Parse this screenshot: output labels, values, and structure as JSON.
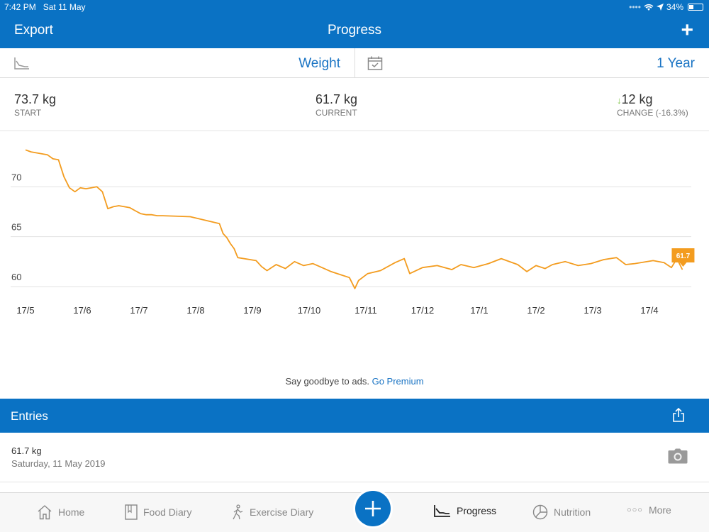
{
  "status_bar": {
    "time": "7:42 PM",
    "date": "Sat 11 May",
    "battery": "34%"
  },
  "nav": {
    "left": "Export",
    "title": "Progress",
    "right": "+"
  },
  "filters": {
    "metric": "Weight",
    "period": "1 Year"
  },
  "stats": {
    "start": {
      "value": "73.7 kg",
      "label": "START"
    },
    "current": {
      "value": "61.7 kg",
      "label": "CURRENT"
    },
    "change": {
      "value": "12 kg",
      "label": "CHANGE (-16.3%)",
      "direction": "down"
    }
  },
  "chart_data": {
    "type": "line",
    "x_tick_labels": [
      "17/5",
      "17/6",
      "17/7",
      "17/8",
      "17/9",
      "17/10",
      "17/11",
      "17/12",
      "17/1",
      "17/2",
      "17/3",
      "17/4"
    ],
    "y_ticks": [
      60,
      65,
      70
    ],
    "ylim": [
      59.5,
      74.5
    ],
    "grid": true,
    "line_color": "#f39c1f",
    "last_value_label": "61.7",
    "series": [
      {
        "x": [
          "2018-05-17",
          "2018-05-20",
          "2018-05-23",
          "2018-05-26",
          "2018-05-29",
          "2018-06-01",
          "2018-06-04",
          "2018-06-07",
          "2018-06-10",
          "2018-06-13",
          "2018-06-16",
          "2018-06-19",
          "2018-06-22",
          "2018-06-25",
          "2018-06-28",
          "2018-07-01",
          "2018-07-04",
          "2018-07-07",
          "2018-07-10",
          "2018-07-13",
          "2018-07-16",
          "2018-07-19",
          "2018-07-22",
          "2018-07-25",
          "2018-07-28",
          "2018-07-31",
          "2018-08-15",
          "2018-08-31",
          "2018-09-02",
          "2018-09-04",
          "2018-09-06",
          "2018-09-08",
          "2018-09-10",
          "2018-09-20",
          "2018-09-23",
          "2018-09-26",
          "2018-10-01",
          "2018-10-06",
          "2018-10-11",
          "2018-10-16",
          "2018-10-21",
          "2018-10-26",
          "2018-10-31",
          "2018-11-05",
          "2018-11-10",
          "2018-11-13",
          "2018-11-15",
          "2018-11-20",
          "2018-11-27",
          "2018-12-05",
          "2018-12-10",
          "2018-12-13",
          "2018-12-20",
          "2018-12-28",
          "2019-01-05",
          "2019-01-10",
          "2019-01-17",
          "2019-01-25",
          "2019-02-01",
          "2019-02-10",
          "2019-02-15",
          "2019-02-20",
          "2019-02-25",
          "2019-03-01",
          "2019-03-08",
          "2019-03-15",
          "2019-03-22",
          "2019-03-29",
          "2019-04-05",
          "2019-04-10",
          "2019-04-15",
          "2019-04-25",
          "2019-05-01",
          "2019-05-05",
          "2019-05-08",
          "2019-05-11"
        ],
        "y": [
          73.7,
          73.5,
          73.4,
          73.3,
          73.2,
          72.8,
          72.7,
          71.0,
          69.9,
          69.5,
          69.9,
          69.8,
          69.9,
          70.0,
          69.5,
          67.8,
          68.0,
          68.1,
          68.0,
          67.9,
          67.6,
          67.3,
          67.2,
          67.2,
          67.1,
          67.1,
          67.0,
          66.3,
          65.3,
          64.9,
          64.3,
          63.8,
          62.9,
          62.6,
          62.0,
          61.6,
          62.2,
          61.8,
          62.5,
          62.1,
          62.3,
          61.9,
          61.5,
          61.2,
          60.9,
          59.8,
          60.6,
          61.3,
          61.6,
          62.4,
          62.8,
          61.3,
          61.9,
          62.1,
          61.7,
          62.2,
          61.9,
          62.3,
          62.8,
          62.2,
          61.5,
          62.1,
          61.8,
          62.2,
          62.5,
          62.1,
          62.3,
          62.7,
          62.9,
          62.2,
          62.3,
          62.6,
          62.4,
          61.9,
          62.8,
          61.7
        ]
      }
    ]
  },
  "promo": {
    "text": "Say goodbye to ads.",
    "link": "Go Premium"
  },
  "entries": {
    "title": "Entries",
    "items": [
      {
        "weight": "61.7 kg",
        "date": "Saturday, 11 May 2019"
      }
    ]
  },
  "tabs": [
    {
      "label": "Home",
      "icon": "home-icon"
    },
    {
      "label": "Food Diary",
      "icon": "food-diary-icon"
    },
    {
      "label": "Exercise Diary",
      "icon": "exercise-icon"
    },
    {
      "label": "Progress",
      "icon": "progress-chart-icon",
      "active": true
    },
    {
      "label": "Nutrition",
      "icon": "nutrition-pie-icon"
    },
    {
      "label": "More",
      "icon": "more-dots-icon"
    }
  ],
  "colors": {
    "brand": "#0a72c4",
    "accent": "#f39c1f",
    "down": "#7cc243",
    "link": "#1a74c4"
  }
}
